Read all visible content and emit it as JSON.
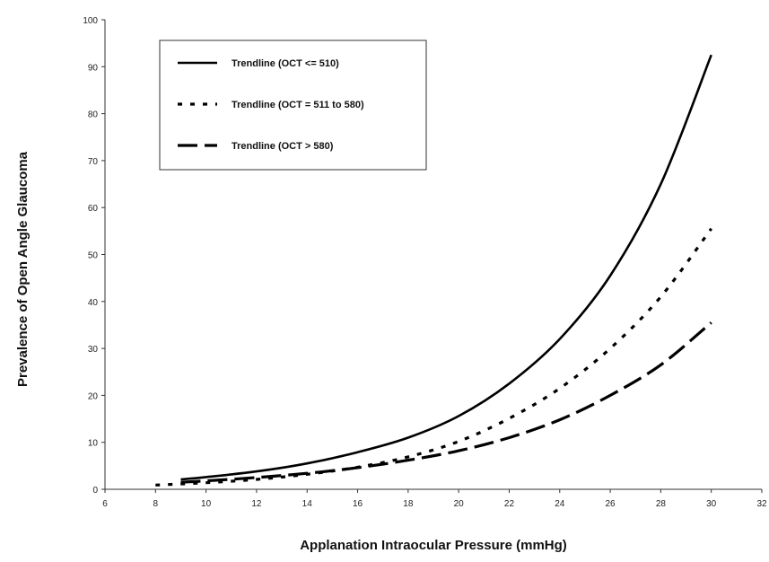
{
  "chart_data": {
    "type": "line",
    "title": "",
    "xlabel": "Applanation Intraocular Pressure (mmHg)",
    "ylabel": "Prevalence of Open Angle Glaucoma",
    "xlim": [
      6,
      32
    ],
    "ylim": [
      0,
      100
    ],
    "x_ticks": [
      "6",
      "8",
      "10",
      "12",
      "14",
      "16",
      "18",
      "20",
      "22",
      "24",
      "26",
      "28",
      "30",
      "32"
    ],
    "y_ticks": [
      "0",
      "10",
      "20",
      "30",
      "40",
      "50",
      "60",
      "70",
      "80",
      "90",
      "100"
    ],
    "grid": false,
    "legend_position": "top-left",
    "series": [
      {
        "name": "Trendline (OCT <= 510)",
        "style": "solid",
        "color": "#000000",
        "x": [
          9,
          10,
          12,
          14,
          16,
          18,
          20,
          22,
          24,
          26,
          28,
          30
        ],
        "y": [
          2.1,
          2.6,
          3.8,
          5.5,
          7.9,
          11.0,
          15.6,
          22.5,
          32.0,
          45.5,
          65.0,
          92.5
        ]
      },
      {
        "name": "Trendline (OCT = 511 to 580)",
        "style": "dotted",
        "color": "#000000",
        "x": [
          8,
          10,
          12,
          14,
          16,
          18,
          20,
          22,
          24,
          26,
          28,
          30
        ],
        "y": [
          0.9,
          1.4,
          2.1,
          3.2,
          4.7,
          6.9,
          10.2,
          15.1,
          21.5,
          30.0,
          41.0,
          55.5
        ]
      },
      {
        "name": "Trendline (OCT > 580)",
        "style": "dashed",
        "color": "#000000",
        "x": [
          9,
          10,
          12,
          14,
          16,
          18,
          20,
          22,
          24,
          26,
          28,
          30
        ],
        "y": [
          1.5,
          1.8,
          2.5,
          3.4,
          4.6,
          6.2,
          8.2,
          11.0,
          14.8,
          20.0,
          26.5,
          35.5
        ]
      }
    ]
  }
}
